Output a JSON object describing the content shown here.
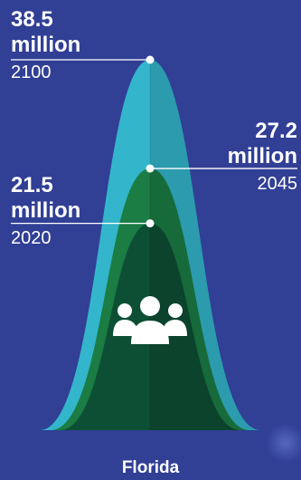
{
  "chart_data": {
    "type": "area",
    "title": "",
    "xlabel": "Florida",
    "ylabel": "",
    "unit": "million",
    "ylim": [
      0,
      40
    ],
    "series": [
      {
        "year": "2100",
        "value": 38.5,
        "value_text": "38.5",
        "unit_text": "million",
        "color": "#33b6cc",
        "label_side": "left"
      },
      {
        "year": "2045",
        "value": 27.2,
        "value_text": "27.2",
        "unit_text": "million",
        "color": "#1b7d44",
        "label_side": "right"
      },
      {
        "year": "2020",
        "value": 21.5,
        "value_text": "21.5",
        "unit_text": "million",
        "color": "#0d4f35",
        "label_side": "left"
      }
    ],
    "icon": "people-group-icon"
  },
  "colors": {
    "background": "#313f95",
    "text": "#ffffff"
  }
}
